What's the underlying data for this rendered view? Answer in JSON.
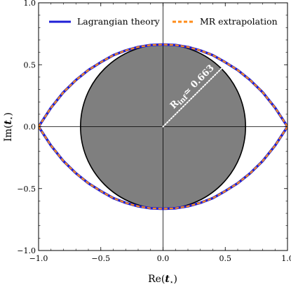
{
  "chart_data": {
    "type": "line",
    "title": "",
    "xlabel_main": "Re(",
    "xlabel_var": "t",
    "xlabel_sub": "⋆",
    "xlabel_end": ")",
    "ylabel_main": "Im(",
    "ylabel_var": "t",
    "ylabel_sub": "⋆",
    "ylabel_end": ")",
    "xlim": [
      -1.0,
      1.0
    ],
    "ylim": [
      -1.0,
      1.0
    ],
    "xticks": [
      -1.0,
      -0.5,
      0.0,
      0.5,
      1.0
    ],
    "xtick_labels": [
      "−1.0",
      "−0.5",
      "0.0",
      "0.5",
      "1.0"
    ],
    "yticks": [
      -1.0,
      -0.5,
      0.0,
      0.5,
      1.0
    ],
    "ytick_labels": [
      "−1.0",
      "−0.5",
      "0.0",
      "0.5",
      "1.0"
    ],
    "grid": false,
    "legend_position": "top",
    "disk": {
      "center": [
        0,
        0
      ],
      "radius": 0.663,
      "fill_color": "#7f7f7f",
      "edge_color": "#000000"
    },
    "radius_annotation": {
      "text_main": "R",
      "text_sub": "inf",
      "text_rest": "≃ 0.663",
      "angle_deg": 45
    },
    "series": [
      {
        "name": "Lagrangian theory",
        "color": "#1f1fd6",
        "style": "solid",
        "x": [
          -1.0,
          -0.9,
          -0.8,
          -0.7,
          -0.6,
          -0.5,
          -0.4,
          -0.3,
          -0.2,
          -0.1,
          0.0,
          0.1,
          0.2,
          0.3,
          0.4,
          0.5,
          0.6,
          0.7,
          0.8,
          0.9,
          1.0
        ],
        "y_upper": [
          0.0,
          0.153,
          0.278,
          0.376,
          0.457,
          0.52,
          0.577,
          0.615,
          0.643,
          0.659,
          0.663,
          0.659,
          0.643,
          0.615,
          0.577,
          0.52,
          0.457,
          0.376,
          0.278,
          0.153,
          0.0
        ],
        "y_lower": [
          0.0,
          -0.153,
          -0.278,
          -0.376,
          -0.457,
          -0.52,
          -0.577,
          -0.615,
          -0.643,
          -0.659,
          -0.663,
          -0.659,
          -0.643,
          -0.615,
          -0.577,
          -0.52,
          -0.457,
          -0.376,
          -0.278,
          -0.153,
          0.0
        ]
      },
      {
        "name": "MR extrapolation",
        "color": "#ff8c1a",
        "style": "dashed",
        "x": [
          -1.0,
          -0.9,
          -0.8,
          -0.7,
          -0.6,
          -0.5,
          -0.4,
          -0.3,
          -0.2,
          -0.1,
          0.0,
          0.1,
          0.2,
          0.3,
          0.4,
          0.5,
          0.6,
          0.7,
          0.8,
          0.9,
          1.0
        ],
        "y_upper": [
          0.0,
          0.153,
          0.278,
          0.376,
          0.457,
          0.52,
          0.577,
          0.615,
          0.643,
          0.659,
          0.663,
          0.659,
          0.643,
          0.615,
          0.577,
          0.52,
          0.457,
          0.376,
          0.278,
          0.153,
          0.0
        ],
        "y_lower": [
          0.0,
          -0.153,
          -0.278,
          -0.376,
          -0.457,
          -0.52,
          -0.577,
          -0.615,
          -0.643,
          -0.659,
          -0.663,
          -0.659,
          -0.643,
          -0.615,
          -0.577,
          -0.52,
          -0.457,
          -0.376,
          -0.278,
          -0.153,
          0.0
        ]
      }
    ]
  }
}
